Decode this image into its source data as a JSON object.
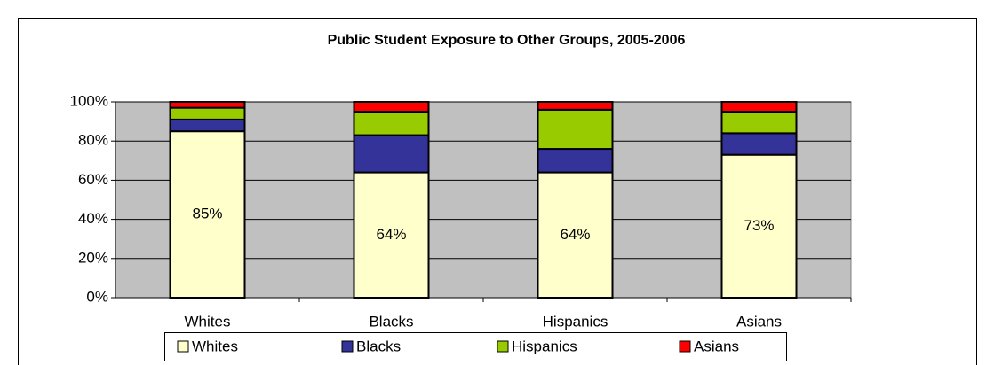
{
  "chart_data": {
    "type": "stacked_bar",
    "title": "Public Student Exposure to Other Groups, 2005-2006",
    "categories": [
      "Whites",
      "Blacks",
      "Hispanics",
      "Asians"
    ],
    "series": [
      {
        "name": "Whites",
        "color": "#ffffcc",
        "values": [
          85,
          64,
          64,
          73
        ],
        "value_labels": [
          "85%",
          "64%",
          "64%",
          "73%"
        ]
      },
      {
        "name": "Blacks",
        "color": "#333399",
        "values": [
          6,
          19,
          12,
          11
        ]
      },
      {
        "name": "Hispanics",
        "color": "#99cc00",
        "values": [
          6,
          12,
          20,
          11
        ]
      },
      {
        "name": "Asians",
        "color": "#ff0000",
        "values": [
          3,
          5,
          4,
          5
        ]
      }
    ],
    "ylim": [
      0,
      100
    ],
    "yticks": [
      {
        "value": 0,
        "label": "0%"
      },
      {
        "value": 20,
        "label": "20%"
      },
      {
        "value": 40,
        "label": "40%"
      },
      {
        "value": 60,
        "label": "60%"
      },
      {
        "value": 80,
        "label": "80%"
      },
      {
        "value": 100,
        "label": "100%"
      }
    ],
    "grid": true,
    "plot_background": "#c0c0c0",
    "legend": "bottom"
  }
}
